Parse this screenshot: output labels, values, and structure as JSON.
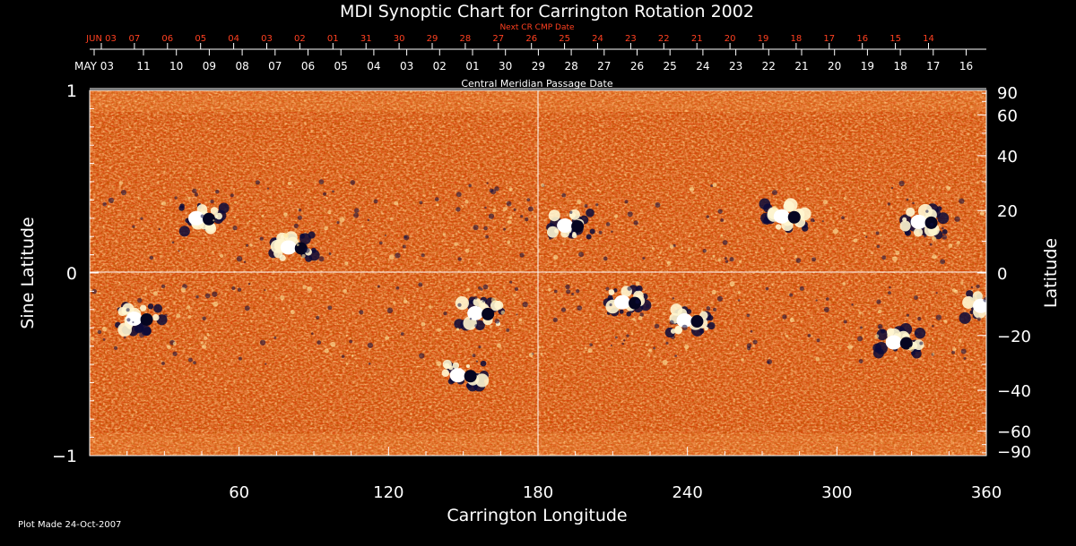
{
  "chart_data": {
    "type": "heatmap",
    "title": "MDI Synoptic Chart for Carrington Rotation 2002",
    "xlabel": "Carrington Longitude",
    "ylabel_left": "Sine Latitude",
    "ylabel_right": "Latitude",
    "xlim": [
      0,
      360
    ],
    "ylim": [
      -1,
      1
    ],
    "x_ticks": [
      60,
      120,
      180,
      240,
      300,
      360
    ],
    "y_ticks_left": [
      "1",
      "0",
      "−1"
    ],
    "y_ticks_right": [
      "90",
      "60",
      "40",
      "20",
      "0",
      "−20",
      "−40",
      "−60",
      "−90"
    ],
    "y_ticks_right_values": [
      90,
      60,
      40,
      20,
      0,
      -20,
      -40,
      -60,
      -90
    ],
    "top_axis_label": "Next CR CMP Date",
    "top_axis_labels": [
      "JUN 03",
      "07",
      "06",
      "05",
      "04",
      "03",
      "02",
      "01",
      "31",
      "30",
      "29",
      "28",
      "27",
      "26",
      "25",
      "24",
      "23",
      "22",
      "21",
      "20",
      "19",
      "18",
      "17",
      "16",
      "15",
      "14"
    ],
    "bottom_date_axis_label": "Central Meridian Passage Date",
    "date_axis_labels": [
      "MAY 03",
      "11",
      "10",
      "09",
      "08",
      "07",
      "06",
      "05",
      "04",
      "03",
      "02",
      "01",
      "30",
      "29",
      "28",
      "27",
      "26",
      "25",
      "24",
      "23",
      "22",
      "21",
      "20",
      "19",
      "18",
      "17",
      "16"
    ],
    "colorscale": [
      "#000033",
      "#a02000",
      "#e05000",
      "#ff9a30",
      "#ffffff"
    ],
    "crosshair": {
      "x": 180,
      "y": 0
    },
    "field_regions": [
      {
        "lon": 157,
        "sinlat": -0.22,
        "kind": "mixed"
      },
      {
        "lon": 150,
        "sinlat": -0.56,
        "kind": "mixed"
      },
      {
        "lon": 193,
        "sinlat": 0.26,
        "kind": "mixed"
      },
      {
        "lon": 216,
        "sinlat": -0.16,
        "kind": "mixed"
      },
      {
        "lon": 241,
        "sinlat": -0.26,
        "kind": "mixed"
      },
      {
        "lon": 280,
        "sinlat": 0.31,
        "kind": "mixed"
      },
      {
        "lon": 335,
        "sinlat": 0.28,
        "kind": "mixed"
      },
      {
        "lon": 82,
        "sinlat": 0.14,
        "kind": "mixed"
      },
      {
        "lon": 45,
        "sinlat": 0.3,
        "kind": "mixed"
      },
      {
        "lon": 20,
        "sinlat": -0.25,
        "kind": "mixed"
      },
      {
        "lon": 325,
        "sinlat": -0.38,
        "kind": "mixed"
      },
      {
        "lon": 360,
        "sinlat": -0.18,
        "kind": "mixed"
      }
    ]
  },
  "footer": {
    "plot_made": "Plot Made 24-Oct-2007"
  }
}
